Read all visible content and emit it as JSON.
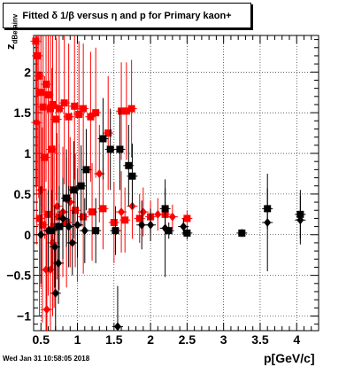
{
  "title": "Fitted δ 1/β versus η and p for Primary kaon+",
  "footer": "Wed Jan 31 10:58:05 2018",
  "chart_data": {
    "type": "scatter",
    "title": "Fitted δ 1/β versus η and p for Primary kaon+",
    "xlabel": "p[GeV/c]",
    "ylabel_main": "z",
    "ylabel_sub": "dBetainv",
    "xlim": [
      0.4,
      4.3
    ],
    "ylim": [
      -1.18,
      2.45
    ],
    "x_ticks": [
      0.5,
      1,
      1.5,
      2,
      2.5,
      3,
      3.5,
      4
    ],
    "x_tick_labels": [
      "0.5",
      "1",
      "1.5",
      "2",
      "2.5",
      "3",
      "3.5",
      "4"
    ],
    "y_ticks": [
      -1,
      -0.5,
      0,
      0.5,
      1,
      1.5,
      2
    ],
    "y_tick_labels": [
      "−1",
      "−0.5",
      "0",
      "0.5",
      "1",
      "1.5",
      "2"
    ],
    "colors": {
      "red": "#ff0000",
      "black": "#000000"
    },
    "series": [
      {
        "color": "red",
        "marker": "square",
        "points": [
          {
            "x": 0.43,
            "y": 2.38,
            "err": 1.8
          },
          {
            "x": 0.45,
            "y": 2.2,
            "err": 1.6
          },
          {
            "x": 0.47,
            "y": 1.95,
            "err": 1.5
          },
          {
            "x": 0.5,
            "y": 1.75,
            "err": 1.4
          },
          {
            "x": 0.53,
            "y": 1.57,
            "err": 1.3
          },
          {
            "x": 0.57,
            "y": 1.85,
            "err": 1.2
          },
          {
            "x": 0.6,
            "y": 1.72,
            "err": 1.2
          },
          {
            "x": 0.63,
            "y": 1.55,
            "err": 1.1
          },
          {
            "x": 0.66,
            "y": 1.6,
            "err": 1.1
          },
          {
            "x": 0.71,
            "y": 1.42,
            "err": 1.0
          },
          {
            "x": 0.75,
            "y": 1.55,
            "err": 1.0
          },
          {
            "x": 0.82,
            "y": 1.62,
            "err": 1.0
          },
          {
            "x": 0.88,
            "y": 1.45,
            "err": 0.9
          },
          {
            "x": 0.96,
            "y": 1.58,
            "err": 0.9
          },
          {
            "x": 1.02,
            "y": 1.48,
            "err": 0.9
          },
          {
            "x": 1.08,
            "y": 1.55,
            "err": 0.8
          },
          {
            "x": 1.18,
            "y": 1.45,
            "err": 0.8
          },
          {
            "x": 1.25,
            "y": 1.5,
            "err": 0.8
          },
          {
            "x": 1.42,
            "y": 1.25,
            "err": 0.7
          },
          {
            "x": 1.6,
            "y": 1.52,
            "err": 0.6
          },
          {
            "x": 1.67,
            "y": 1.52,
            "err": 0.6
          },
          {
            "x": 1.74,
            "y": 1.55,
            "err": 0.6
          },
          {
            "x": 0.55,
            "y": 0.95,
            "err": 1.0
          },
          {
            "x": 0.65,
            "y": 1.05,
            "err": 1.0
          },
          {
            "x": 0.48,
            "y": 0.2,
            "err": 1.2
          },
          {
            "x": 0.52,
            "y": 0.12,
            "err": 1.2
          },
          {
            "x": 0.6,
            "y": 0.25,
            "err": 1.0
          },
          {
            "x": 0.68,
            "y": 0.1,
            "err": 1.0
          },
          {
            "x": 0.75,
            "y": 0.22,
            "err": 0.9
          },
          {
            "x": 0.85,
            "y": 0.15,
            "err": 0.8
          },
          {
            "x": 0.97,
            "y": 0.3,
            "err": 0.7
          },
          {
            "x": 1.08,
            "y": 0.22,
            "err": 0.7
          },
          {
            "x": 1.2,
            "y": 0.28,
            "err": 0.6
          },
          {
            "x": 1.35,
            "y": 0.32,
            "err": 0.5
          },
          {
            "x": 1.5,
            "y": 0.15,
            "err": 0.5
          },
          {
            "x": 1.65,
            "y": 0.18,
            "err": 0.4
          },
          {
            "x": 1.85,
            "y": 0.2,
            "err": 0.3
          },
          {
            "x": 2.0,
            "y": 0.22,
            "err": 0.2
          },
          {
            "x": 2.2,
            "y": 0.25,
            "err": 0.15
          },
          {
            "x": 2.5,
            "y": 0.2,
            "err": 0.1
          }
        ]
      },
      {
        "color": "red",
        "marker": "diamond",
        "points": [
          {
            "x": 0.44,
            "y": 1.38,
            "err": 1.5
          },
          {
            "x": 0.5,
            "y": 0.55,
            "err": 1.2
          },
          {
            "x": 0.57,
            "y": -0.43,
            "err": 1.0
          },
          {
            "x": 0.63,
            "y": -0.43,
            "err": 1.0
          },
          {
            "x": 0.58,
            "y": -0.92,
            "err": 1.0
          },
          {
            "x": 0.66,
            "y": -0.1,
            "err": 0.9
          },
          {
            "x": 0.72,
            "y": 0.35,
            "err": 0.9
          },
          {
            "x": 0.8,
            "y": 0.28,
            "err": 0.8
          },
          {
            "x": 0.9,
            "y": 0.4,
            "err": 0.8
          },
          {
            "x": 1.0,
            "y": 0.12,
            "err": 0.7
          },
          {
            "x": 1.3,
            "y": 0.75,
            "err": 0.6
          },
          {
            "x": 1.6,
            "y": 0.28,
            "err": 0.5
          },
          {
            "x": 1.75,
            "y": 0.35,
            "err": 0.4
          },
          {
            "x": 1.9,
            "y": 0.28,
            "err": 0.3
          },
          {
            "x": 2.1,
            "y": 0.25,
            "err": 0.2
          },
          {
            "x": 2.3,
            "y": 0.22,
            "err": 0.15
          }
        ]
      },
      {
        "color": "black",
        "marker": "square",
        "points": [
          {
            "x": 1.35,
            "y": 1.18,
            "err": 0.5
          },
          {
            "x": 1.45,
            "y": 1.05,
            "err": 0.5
          },
          {
            "x": 1.58,
            "y": 1.05,
            "err": 0.5
          },
          {
            "x": 1.7,
            "y": 0.85,
            "err": 0.5
          },
          {
            "x": 1.75,
            "y": 0.72,
            "err": 0.4
          },
          {
            "x": 1.12,
            "y": 0.8,
            "err": 0.5
          },
          {
            "x": 1.05,
            "y": 0.6,
            "err": 0.5
          },
          {
            "x": 0.95,
            "y": 0.55,
            "err": 0.6
          },
          {
            "x": 0.85,
            "y": 0.45,
            "err": 0.6
          },
          {
            "x": 0.75,
            "y": 0.1,
            "err": 0.5
          },
          {
            "x": 0.65,
            "y": 0.05,
            "err": 0.5
          },
          {
            "x": 1.25,
            "y": 0.05,
            "err": 0.4
          },
          {
            "x": 1.52,
            "y": 0.05,
            "err": 0.3
          },
          {
            "x": 2.2,
            "y": 0.32,
            "err": 0.25
          },
          {
            "x": 2.25,
            "y": 0.05,
            "err": 0.1
          },
          {
            "x": 2.5,
            "y": 0.02,
            "err": 0.08
          },
          {
            "x": 3.25,
            "y": 0.02,
            "err": 0.05
          },
          {
            "x": 3.6,
            "y": 0.32,
            "err": 0.25
          },
          {
            "x": 4.05,
            "y": 0.25,
            "err": 0.3
          }
        ]
      },
      {
        "color": "black",
        "marker": "diamond",
        "points": [
          {
            "x": 0.5,
            "y": 0.0,
            "err": 0.6
          },
          {
            "x": 0.6,
            "y": 0.05,
            "err": 0.5
          },
          {
            "x": 0.69,
            "y": -0.15,
            "err": 0.5
          },
          {
            "x": 0.74,
            "y": -0.35,
            "err": 0.5
          },
          {
            "x": 0.8,
            "y": 0.2,
            "err": 0.5
          },
          {
            "x": 0.88,
            "y": 0.1,
            "err": 0.5
          },
          {
            "x": 0.93,
            "y": -0.1,
            "err": 0.4
          },
          {
            "x": 1.0,
            "y": 0.12,
            "err": 0.4
          },
          {
            "x": 1.1,
            "y": 0.05,
            "err": 0.4
          },
          {
            "x": 0.7,
            "y": -0.72,
            "err": 0.6
          },
          {
            "x": 1.55,
            "y": -1.13,
            "err": 0.5
          },
          {
            "x": 1.88,
            "y": 0.12,
            "err": 0.3
          },
          {
            "x": 2.0,
            "y": 0.12,
            "err": 0.2
          },
          {
            "x": 2.2,
            "y": 0.08,
            "err": 0.6
          },
          {
            "x": 2.45,
            "y": 0.1,
            "err": 0.1
          },
          {
            "x": 3.6,
            "y": 0.15,
            "err": 0.6
          },
          {
            "x": 4.05,
            "y": 0.18,
            "err": 0.3
          }
        ]
      }
    ]
  }
}
